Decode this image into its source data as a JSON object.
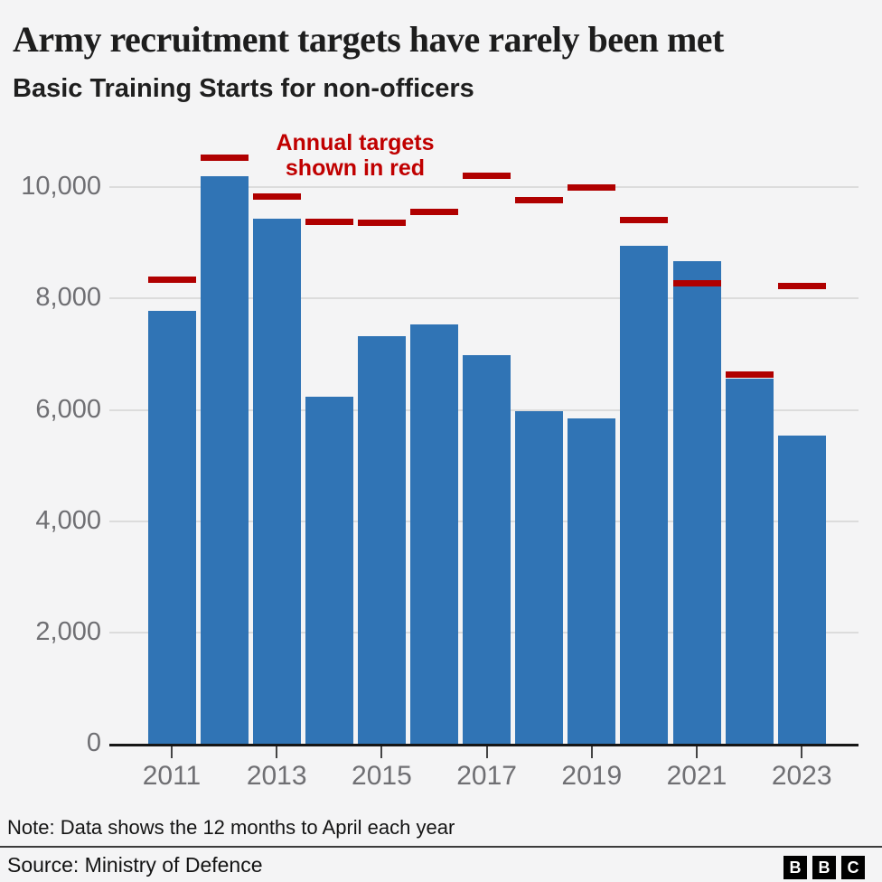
{
  "header": {
    "title": "Army recruitment targets have rarely been met",
    "subtitle": "Basic Training Starts for non-officers"
  },
  "annotation": {
    "line1": "Annual targets",
    "line2": "shown in red"
  },
  "chart_data": {
    "type": "bar",
    "categories": [
      2011,
      2012,
      2013,
      2014,
      2015,
      2016,
      2017,
      2018,
      2019,
      2020,
      2021,
      2022,
      2023
    ],
    "series": [
      {
        "name": "Basic Training Starts",
        "type": "bar",
        "values": [
          7780,
          10190,
          9430,
          6230,
          7330,
          7540,
          6980,
          5980,
          5850,
          8950,
          8670,
          6560,
          5530
        ]
      },
      {
        "name": "Annual target",
        "type": "dash-line",
        "values": [
          8340,
          10530,
          9830,
          9370,
          9360,
          9550,
          10200,
          9770,
          10000,
          9400,
          8270,
          6640,
          8220
        ]
      }
    ],
    "title": "Army recruitment targets have rarely been met",
    "subtitle": "Basic Training Starts for non-officers",
    "annotation": "Annual targets shown in red",
    "xlabel": "",
    "ylabel": "",
    "ylim": [
      0,
      10700
    ],
    "yticks": [
      0,
      2000,
      4000,
      6000,
      8000,
      10000
    ],
    "ytick_labels": [
      "0",
      "2,000",
      "4,000",
      "6,000",
      "8,000",
      "10,000"
    ],
    "xticks": [
      2011,
      2013,
      2015,
      2017,
      2019,
      2021,
      2023
    ],
    "grid": "horizontal"
  },
  "colors": {
    "bar": "#3074b5",
    "target": "#b00000",
    "annotation_text": "#c00000",
    "gridline": "#dcdcdc",
    "axis": "#161616",
    "tick_label": "#6f6f73",
    "background": "#f4f4f5"
  },
  "footer": {
    "note": "Note: Data shows the 12 months to April each year",
    "source": "Source: Ministry of Defence",
    "logo_blocks": [
      "B",
      "B",
      "C"
    ]
  }
}
